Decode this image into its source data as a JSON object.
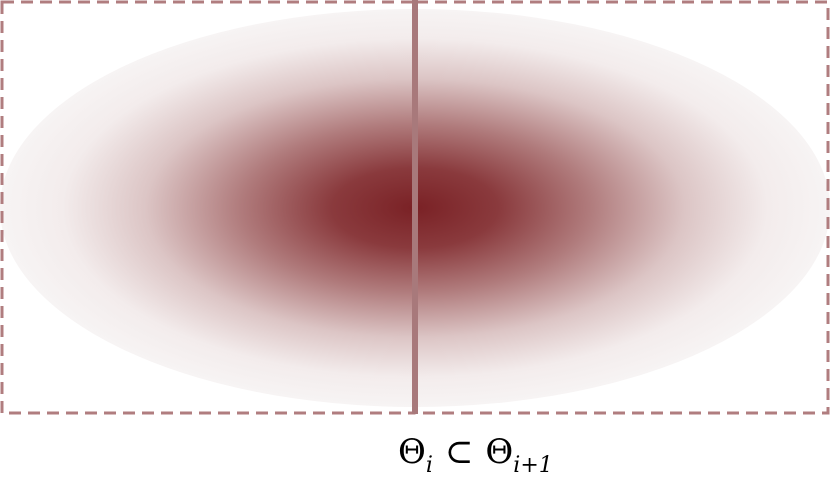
{
  "colors": {
    "blob_core": "#7a2125",
    "blob_mid": "#9c5556",
    "blob_edge": "#f7f4f4",
    "border_dash": "#b07d7f",
    "divider": "#a8797b",
    "caption_text": "#000000"
  },
  "caption": {
    "theta_left": "Θ",
    "sub_left": "i",
    "subset_symbol": "⊂",
    "theta_right": "Θ",
    "sub_right": "i+1"
  }
}
